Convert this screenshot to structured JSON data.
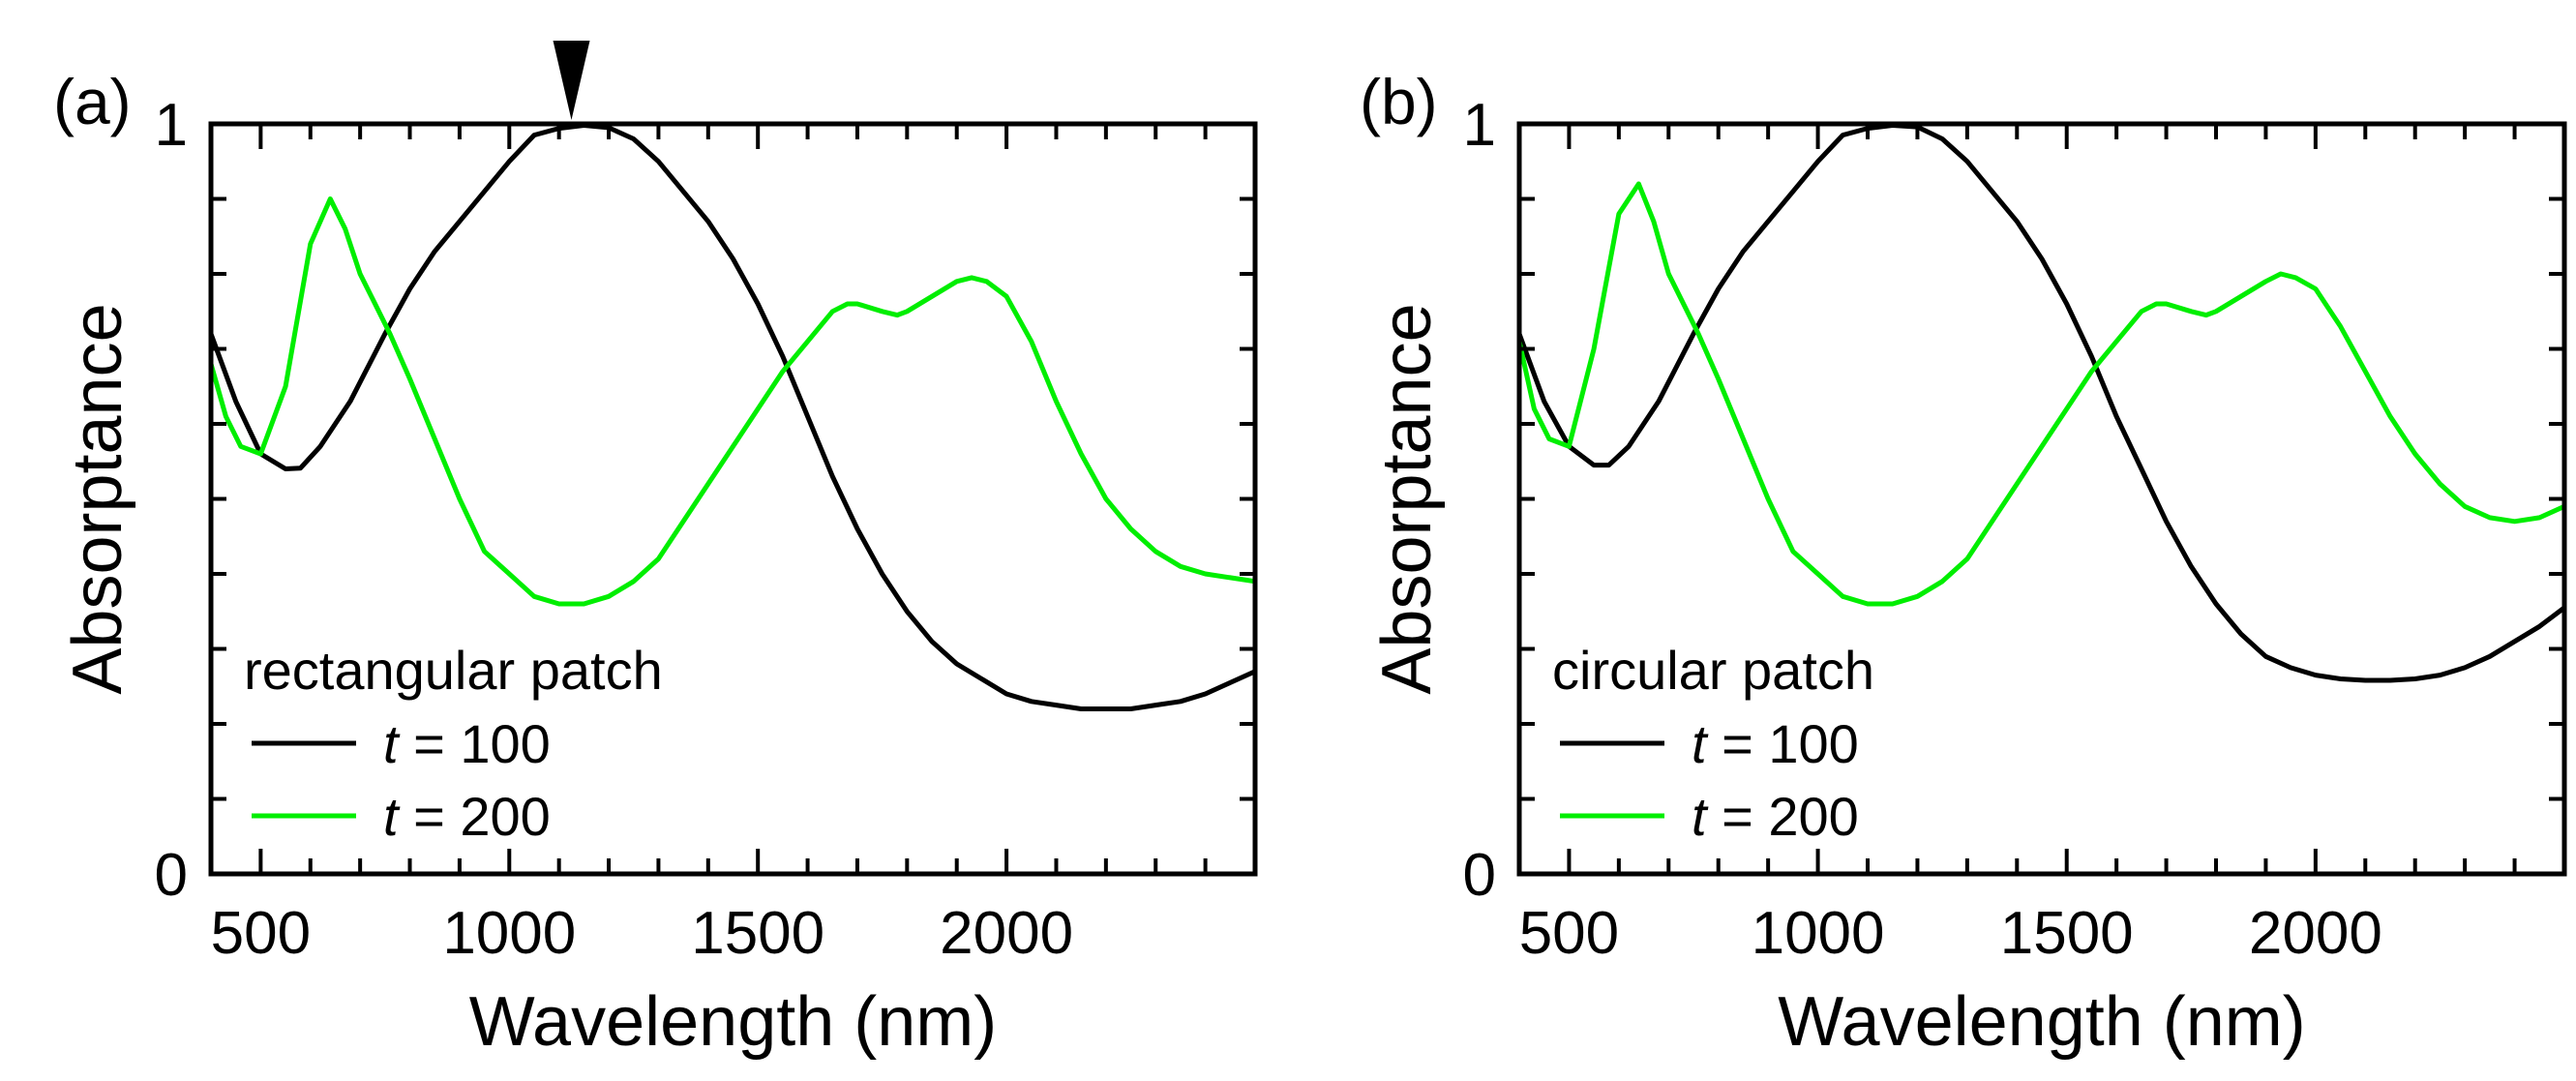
{
  "figure": {
    "marker": "down-triangle-marker"
  },
  "chart_data": [
    {
      "type": "line",
      "panel_label": "(a)",
      "title": "rectangular patch",
      "xlabel": "Wavelength (nm)",
      "ylabel": "Absorptance",
      "xlim": [
        400,
        2500
      ],
      "ylim": [
        0,
        1
      ],
      "xticks": [
        500,
        1000,
        1500,
        2000
      ],
      "xtick_labels": [
        "500",
        "1000",
        "1500",
        "2000"
      ],
      "xminor_step": 100,
      "yticks": [
        0,
        1
      ],
      "ytick_labels": [
        "0",
        "1"
      ],
      "yminor_step": 0.1,
      "marker_x": 1125,
      "legend": {
        "title": "rectangular patch",
        "location": "lower-left",
        "entries": [
          {
            "var": "t",
            "label": " = 100",
            "color": "#000000"
          },
          {
            "var": "t",
            "label": " = 200",
            "color": "#00ee00"
          }
        ]
      },
      "series": [
        {
          "name": "t = 100",
          "color": "#000000",
          "x": [
            400,
            450,
            500,
            550,
            580,
            620,
            680,
            750,
            800,
            850,
            900,
            950,
            1000,
            1050,
            1100,
            1150,
            1200,
            1250,
            1300,
            1350,
            1400,
            1450,
            1500,
            1550,
            1600,
            1650,
            1700,
            1750,
            1800,
            1850,
            1900,
            1950,
            2000,
            2050,
            2100,
            2150,
            2200,
            2250,
            2300,
            2350,
            2400,
            2450,
            2500
          ],
          "y": [
            0.72,
            0.63,
            0.56,
            0.54,
            0.541,
            0.57,
            0.63,
            0.72,
            0.78,
            0.83,
            0.87,
            0.91,
            0.95,
            0.985,
            0.994,
            0.998,
            0.995,
            0.98,
            0.95,
            0.91,
            0.87,
            0.82,
            0.76,
            0.69,
            0.61,
            0.53,
            0.46,
            0.4,
            0.35,
            0.31,
            0.28,
            0.26,
            0.24,
            0.23,
            0.225,
            0.22,
            0.22,
            0.22,
            0.225,
            0.23,
            0.24,
            0.255,
            0.27
          ]
        },
        {
          "name": "t = 200",
          "color": "#00ee00",
          "x": [
            400,
            430,
            460,
            500,
            550,
            600,
            640,
            670,
            700,
            730,
            760,
            800,
            850,
            900,
            950,
            1000,
            1050,
            1100,
            1150,
            1200,
            1250,
            1300,
            1350,
            1400,
            1450,
            1500,
            1550,
            1600,
            1650,
            1680,
            1700,
            1750,
            1780,
            1800,
            1850,
            1900,
            1930,
            1960,
            2000,
            2050,
            2100,
            2150,
            2200,
            2250,
            2300,
            2350,
            2400,
            2450,
            2500
          ],
          "y": [
            0.68,
            0.61,
            0.57,
            0.56,
            0.65,
            0.84,
            0.9,
            0.86,
            0.8,
            0.76,
            0.72,
            0.66,
            0.58,
            0.5,
            0.43,
            0.4,
            0.37,
            0.36,
            0.36,
            0.37,
            0.39,
            0.42,
            0.47,
            0.52,
            0.57,
            0.62,
            0.67,
            0.71,
            0.75,
            0.76,
            0.76,
            0.75,
            0.745,
            0.75,
            0.77,
            0.79,
            0.795,
            0.79,
            0.77,
            0.71,
            0.63,
            0.56,
            0.5,
            0.46,
            0.43,
            0.41,
            0.4,
            0.395,
            0.39
          ]
        }
      ]
    },
    {
      "type": "line",
      "panel_label": "(b)",
      "title": "circular patch",
      "xlabel": "Wavelength (nm)",
      "ylabel": "Absorptance",
      "xlim": [
        400,
        2500
      ],
      "ylim": [
        0,
        1
      ],
      "xticks": [
        500,
        1000,
        1500,
        2000
      ],
      "xtick_labels": [
        "500",
        "1000",
        "1500",
        "2000"
      ],
      "xminor_step": 100,
      "yticks": [
        0,
        1
      ],
      "ytick_labels": [
        "0",
        "1"
      ],
      "yminor_step": 0.1,
      "legend": {
        "title": "circular patch",
        "location": "lower-left",
        "entries": [
          {
            "var": "t",
            "label": " = 100",
            "color": "#000000"
          },
          {
            "var": "t",
            "label": " = 200",
            "color": "#00ee00"
          }
        ]
      },
      "series": [
        {
          "name": "t = 100",
          "color": "#000000",
          "x": [
            400,
            450,
            500,
            550,
            580,
            620,
            680,
            750,
            800,
            850,
            900,
            950,
            1000,
            1050,
            1100,
            1150,
            1200,
            1250,
            1300,
            1350,
            1400,
            1450,
            1500,
            1550,
            1600,
            1650,
            1700,
            1750,
            1800,
            1850,
            1900,
            1950,
            2000,
            2050,
            2100,
            2150,
            2200,
            2250,
            2300,
            2350,
            2400,
            2450,
            2500
          ],
          "y": [
            0.72,
            0.63,
            0.57,
            0.545,
            0.545,
            0.57,
            0.63,
            0.72,
            0.78,
            0.83,
            0.87,
            0.91,
            0.95,
            0.985,
            0.994,
            0.998,
            0.996,
            0.98,
            0.95,
            0.91,
            0.87,
            0.82,
            0.76,
            0.69,
            0.61,
            0.54,
            0.47,
            0.41,
            0.36,
            0.32,
            0.29,
            0.275,
            0.265,
            0.26,
            0.258,
            0.258,
            0.26,
            0.265,
            0.275,
            0.29,
            0.31,
            0.33,
            0.355
          ]
        },
        {
          "name": "t = 200",
          "color": "#00ee00",
          "x": [
            400,
            430,
            460,
            500,
            550,
            600,
            640,
            670,
            700,
            730,
            760,
            800,
            850,
            900,
            950,
            1000,
            1050,
            1100,
            1150,
            1200,
            1250,
            1300,
            1350,
            1400,
            1450,
            1500,
            1550,
            1600,
            1650,
            1680,
            1700,
            1750,
            1780,
            1800,
            1850,
            1900,
            1930,
            1960,
            2000,
            2050,
            2100,
            2150,
            2200,
            2250,
            2300,
            2350,
            2400,
            2450,
            2500
          ],
          "y": [
            0.71,
            0.62,
            0.58,
            0.57,
            0.7,
            0.88,
            0.92,
            0.87,
            0.8,
            0.76,
            0.72,
            0.66,
            0.58,
            0.5,
            0.43,
            0.4,
            0.37,
            0.36,
            0.36,
            0.37,
            0.39,
            0.42,
            0.47,
            0.52,
            0.57,
            0.62,
            0.67,
            0.71,
            0.75,
            0.76,
            0.76,
            0.75,
            0.745,
            0.75,
            0.77,
            0.79,
            0.8,
            0.795,
            0.78,
            0.73,
            0.67,
            0.61,
            0.56,
            0.52,
            0.49,
            0.475,
            0.47,
            0.475,
            0.49
          ]
        }
      ]
    }
  ]
}
